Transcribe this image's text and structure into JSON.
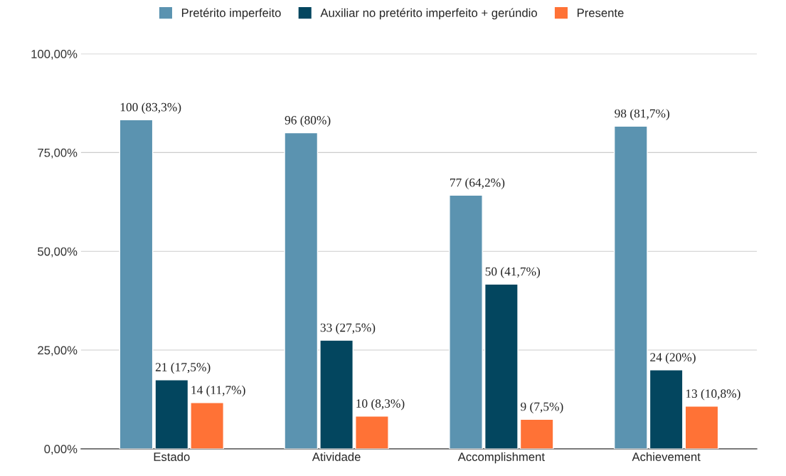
{
  "chart_data": {
    "type": "bar",
    "categories": [
      "Estado",
      "Atividade",
      "Accomplishment",
      "Achievement"
    ],
    "series": [
      {
        "name": "Pretérito imperfeito",
        "color": "#5b93b0",
        "values": [
          83.3,
          80,
          64.2,
          81.7
        ],
        "value_labels": [
          "100 (83,3%)",
          "96 (80%)",
          "77 (64,2%)",
          "98 (81,7%)"
        ]
      },
      {
        "name": "Auxiliar no pretérito imperfeito + gerúndio",
        "color": "#03465f",
        "values": [
          17.5,
          27.5,
          41.7,
          20
        ],
        "value_labels": [
          "21 (17,5%)",
          "33 (27,5%)",
          "50 (41,7%)",
          "24 (20%)"
        ]
      },
      {
        "name": "Presente",
        "color": "#ff7236",
        "values": [
          11.7,
          8.3,
          7.5,
          10.8
        ],
        "value_labels": [
          "14 (11,7%)",
          "10 (8,3%)",
          "9 (7,5%)",
          "13 (10,8%)"
        ]
      }
    ],
    "ylim": [
      0,
      100
    ],
    "yticks": [
      {
        "value": 0,
        "label": "0,00%"
      },
      {
        "value": 25,
        "label": "25,00%"
      },
      {
        "value": 50,
        "label": "50,00%"
      },
      {
        "value": 75,
        "label": "75,00%"
      },
      {
        "value": 100,
        "label": "100,00%"
      }
    ],
    "grid": "y",
    "legend": "top"
  }
}
